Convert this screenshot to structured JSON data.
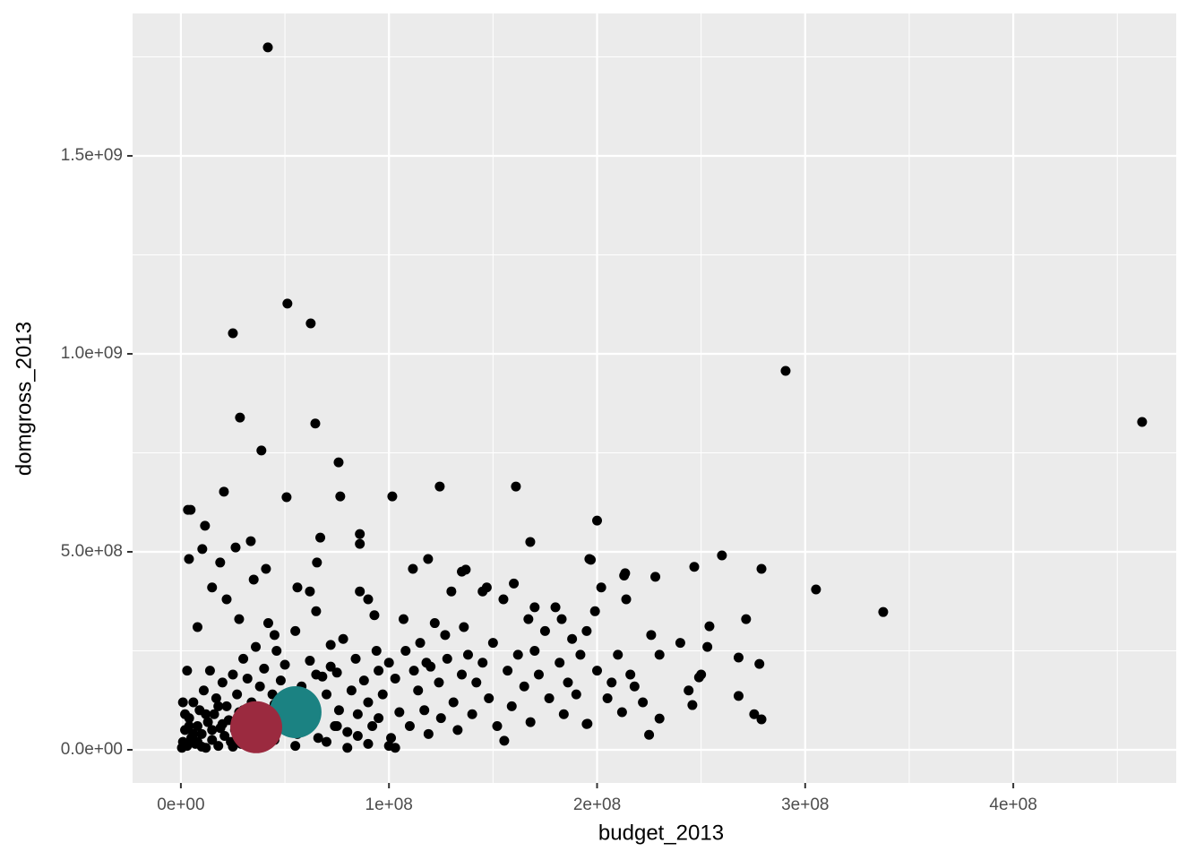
{
  "chart_data": {
    "type": "scatter",
    "x_label": "budget_2013",
    "y_label": "domgross_2013",
    "xlim": [
      -23200000.0,
      478300000.0
    ],
    "ylim": [
      -83700000.0,
      1859700000.0
    ],
    "xticks": [
      {
        "value": 0,
        "label": "0e+00"
      },
      {
        "value": 100000000.0,
        "label": "1e+08"
      },
      {
        "value": 200000000.0,
        "label": "2e+08"
      },
      {
        "value": 300000000.0,
        "label": "3e+08"
      },
      {
        "value": 400000000.0,
        "label": "4e+08"
      }
    ],
    "yticks": [
      {
        "value": 0,
        "label": "0.0e+00"
      },
      {
        "value": 500000000.0,
        "label": "5.0e+08"
      },
      {
        "value": 1000000000.0,
        "label": "1.0e+09"
      },
      {
        "value": 1500000000.0,
        "label": "1.5e+09"
      }
    ],
    "xminor": [
      50000000.0,
      150000000.0,
      250000000.0,
      350000000.0,
      450000000.0
    ],
    "yminor": [
      250000000.0,
      750000000.0,
      1250000000.0,
      1750000000.0
    ],
    "grid": true,
    "series": [
      {
        "color": "#000000",
        "size": 5.5,
        "x": [
          41800000.0,
          51200000.0,
          62400000.0,
          25000000.0,
          290600000.0,
          461900000.0,
          28400000.0,
          64600000.0,
          38700000.0,
          75800000.0,
          20700000.0,
          50800000.0,
          76600000.0,
          101600000.0,
          124400000.0,
          161000000.0,
          200000000.0,
          3400000.0,
          4700000.0,
          67000000.0,
          86000000.0,
          86000000.0,
          11600000.0,
          26300000.0,
          33600000.0,
          10300000.0,
          3900000.0,
          18900000.0,
          65400000.0,
          40900000.0,
          167900000.0,
          118800000.0,
          111500000.0,
          136900000.0,
          196300000.0,
          260000000.0,
          246700000.0,
          279000000.0,
          305200000.0,
          337500000.0,
          228000000.0,
          213500000.0,
          271600000.0,
          254000000.0,
          278000000.0,
          268000000.0,
          279000000.0,
          275500000.0,
          268000000.0,
          230000000.0,
          225000000.0,
          245800000.0,
          249000000.0,
          195400000.0,
          155400000.0,
          103000000.0,
          500000.0,
          1000000.0,
          2000000.0,
          3000000.0,
          4000000.0,
          5000000.0,
          6000000.0,
          7000000.0,
          8000000.0,
          9000000.0,
          10000000.0,
          11000000.0,
          12000000.0,
          13000000.0,
          14000000.0,
          15000000.0,
          16000000.0,
          17000000.0,
          18000000.0,
          19000000.0,
          20000000.0,
          21000000.0,
          22000000.0,
          23000000.0,
          24000000.0,
          25000000.0,
          26000000.0,
          27000000.0,
          28000000.0,
          29000000.0,
          30000000.0,
          31000000.0,
          32000000.0,
          33000000.0,
          34000000.0,
          35000000.0,
          36000000.0,
          37000000.0,
          38000000.0,
          39000000.0,
          40000000.0,
          41000000.0,
          42000000.0,
          43000000.0,
          44000000.0,
          45000000.0,
          46000000.0,
          47000000.0,
          48000000.0,
          49000000.0,
          50000000.0,
          52000000.0,
          54000000.0,
          55000000.0,
          56000000.0,
          58000000.0,
          60000000.0,
          62000000.0,
          64000000.0,
          65000000.0,
          66000000.0,
          68000000.0,
          70000000.0,
          72000000.0,
          74000000.0,
          75000000.0,
          76000000.0,
          78000000.0,
          80000000.0,
          82000000.0,
          84000000.0,
          85000000.0,
          86000000.0,
          88000000.0,
          90000000.0,
          90000000.0,
          92000000.0,
          94000000.0,
          95000000.0,
          97000000.0,
          100000000.0,
          101000000.0,
          103000000.0,
          105000000.0,
          107000000.0,
          108000000.0,
          110000000.0,
          112000000.0,
          114000000.0,
          115000000.0,
          117000000.0,
          119000000.0,
          120000000.0,
          122000000.0,
          124000000.0,
          125000000.0,
          127000000.0,
          128000000.0,
          130000000.0,
          131000000.0,
          133000000.0,
          135000000.0,
          136000000.0,
          138000000.0,
          140000000.0,
          142000000.0,
          145000000.0,
          147000000.0,
          148000000.0,
          150000000.0,
          152000000.0,
          155000000.0,
          157000000.0,
          159000000.0,
          160000000.0,
          162000000.0,
          165000000.0,
          167000000.0,
          168000000.0,
          170000000.0,
          172000000.0,
          175000000.0,
          177000000.0,
          180000000.0,
          182000000.0,
          184000000.0,
          186000000.0,
          188000000.0,
          190000000.0,
          192000000.0,
          195000000.0,
          197000000.0,
          199000000.0,
          200000000.0,
          202000000.0,
          205000000.0,
          207000000.0,
          210000000.0,
          212000000.0,
          214000000.0,
          216000000.0,
          218000000.0,
          222000000.0,
          226000000.0,
          230000000.0,
          240000000.0,
          244000000.0,
          250000000.0,
          253000000.0,
          213000000.0,
          195000000.0,
          183000000.0,
          170000000.0,
          145000000.0,
          135000000.0,
          118000000.0,
          93000000.0,
          72000000.0,
          62000000.0,
          56000000.0,
          45000000.0,
          35000000.0,
          28000000.0,
          22000000.0,
          15000000.0,
          8000000.0,
          3000000.0,
          1000000.0,
          2000000.0,
          4000000.0,
          6000000.0,
          8000000.0,
          10000000.0,
          12000000.0,
          15000000.0,
          18000000.0,
          20000000.0,
          25000000.0,
          30000000.0,
          35000000.0,
          40000000.0,
          45000000.0,
          50000000.0,
          55000000.0,
          60000000.0,
          65000000.0,
          70000000.0,
          75000000.0,
          80000000.0,
          85000000.0,
          90000000.0,
          95000000.0,
          100000000.0
        ],
        "values": [
          1774000000.0,
          1127000000.0,
          1077000000.0,
          1052000000.0,
          957000000.0,
          828000000.0,
          839000000.0,
          824000000.0,
          756000000.0,
          726000000.0,
          652000000.0,
          638000000.0,
          640000000.0,
          640000000.0,
          665000000.0,
          665000000.0,
          579000000.0,
          606000000.0,
          606000000.0,
          536000000.0,
          545000000.0,
          520000000.0,
          566000000.0,
          511000000.0,
          527000000.0,
          507000000.0,
          482000000.0,
          473000000.0,
          473000000.0,
          457000000.0,
          525000000.0,
          482000000.0,
          457000000.0,
          455000000.0,
          482000000.0,
          491000000.0,
          462000000.0,
          457000000.0,
          405000000.0,
          348000000.0,
          437000000.0,
          446000000.0,
          330000000.0,
          312000000.0,
          217000000.0,
          233000000.0,
          77000000.0,
          90000000.0,
          136000000.0,
          79000000.0,
          38000000.0,
          113000000.0,
          183000000.0,
          66000000.0,
          23000000.0,
          5000000.0,
          5000000.0,
          20000000.0,
          50000000.0,
          10000000.0,
          80000000.0,
          30000000.0,
          120000000.0,
          15000000.0,
          60000000.0,
          100000000.0,
          40000000.0,
          150000000.0,
          5000000.0,
          70000000.0,
          200000000.0,
          25000000.0,
          90000000.0,
          130000000.0,
          10000000.0,
          55000000.0,
          170000000.0,
          35000000.0,
          110000000.0,
          75000000.0,
          20000000.0,
          190000000.0,
          50000000.0,
          140000000.0,
          95000000.0,
          15000000.0,
          230000000.0,
          60000000.0,
          180000000.0,
          40000000.0,
          120000000.0,
          85000000.0,
          260000000.0,
          30000000.0,
          160000000.0,
          70000000.0,
          205000000.0,
          45000000.0,
          320000000.0,
          100000000.0,
          140000000.0,
          25000000.0,
          250000000.0,
          80000000.0,
          175000000.0,
          55000000.0,
          215000000.0,
          120000000.0,
          90000000.0,
          300000000.0,
          40000000.0,
          160000000.0,
          70000000.0,
          225000000.0,
          110000000.0,
          350000000.0,
          30000000.0,
          185000000.0,
          140000000.0,
          265000000.0,
          60000000.0,
          195000000.0,
          100000000.0,
          280000000.0,
          45000000.0,
          150000000.0,
          230000000.0,
          90000000.0,
          400000000.0,
          175000000.0,
          120000000.0,
          380000000.0,
          60000000.0,
          250000000.0,
          200000000.0,
          140000000.0,
          220000000.0,
          30000000.0,
          180000000.0,
          95000000.0,
          330000000.0,
          250000000.0,
          60000000.0,
          200000000.0,
          150000000.0,
          270000000.0,
          100000000.0,
          40000000.0,
          210000000.0,
          320000000.0,
          170000000.0,
          80000000.0,
          290000000.0,
          230000000.0,
          400000000.0,
          120000000.0,
          50000000.0,
          190000000.0,
          310000000.0,
          240000000.0,
          90000000.0,
          170000000.0,
          220000000.0,
          410000000.0,
          130000000.0,
          270000000.0,
          60000000.0,
          380000000.0,
          200000000.0,
          110000000.0,
          420000000.0,
          240000000.0,
          160000000.0,
          330000000.0,
          70000000.0,
          250000000.0,
          190000000.0,
          300000000.0,
          130000000.0,
          360000000.0,
          220000000.0,
          90000000.0,
          170000000.0,
          280000000.0,
          140000000.0,
          240000000.0,
          65000000.0,
          480000000.0,
          350000000.0,
          200000000.0,
          410000000.0,
          130000000.0,
          170000000.0,
          240000000.0,
          95000000.0,
          380000000.0,
          190000000.0,
          160000000.0,
          120000000.0,
          290000000.0,
          240000000.0,
          270000000.0,
          150000000.0,
          190000000.0,
          260000000.0,
          440000000.0,
          300000000.0,
          330000000.0,
          360000000.0,
          400000000.0,
          450000000.0,
          220000000.0,
          340000000.0,
          210000000.0,
          400000000.0,
          410000000.0,
          290000000.0,
          430000000.0,
          330000000.0,
          380000000.0,
          410000000.0,
          310000000.0,
          200000000.0,
          120000000.0,
          90000000.0,
          60000000.0,
          40000000.0,
          20000000.0,
          8000000.0,
          90000000.0,
          50000000.0,
          110000000.0,
          65000000.0,
          8000000.0,
          100000000.0,
          12000000.0,
          90000000.0,
          115000000.0,
          60000000.0,
          10000000.0,
          140000000.0,
          190000000.0,
          20000000.0,
          60000000.0,
          5000000.0,
          35000000.0,
          15000000.0,
          80000000.0,
          10000000.0
        ]
      },
      {
        "color": "#1B8282",
        "size": 29,
        "x": [
          55100000.0
        ],
        "values": [
          95000000.0
        ]
      },
      {
        "color": "#9B2A3F",
        "size": 29,
        "x": [
          36200000.0
        ],
        "values": [
          57000000.0
        ]
      }
    ]
  }
}
